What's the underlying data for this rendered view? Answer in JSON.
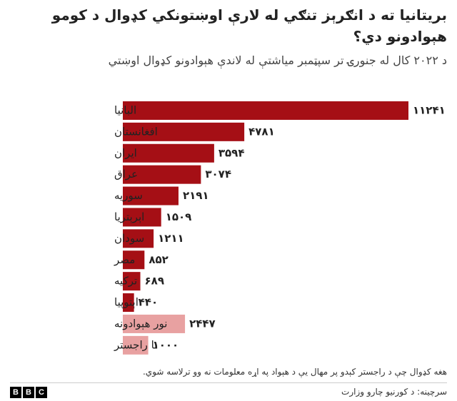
{
  "chart_data": {
    "type": "bar",
    "title": "بریتانیا ته د انګرېز تنګي له لارې اوښتونکي کډوال  د کومو هېوادونو دي؟",
    "subtitle": "د ۲۰۲۲ کال له جنورۍ تر سپټمبر میاشتې له لاندې هېوادونو کډوال اوښتي",
    "categories": [
      "البانیا",
      "افغانستان",
      "ایران",
      "عراق",
      "سوریه",
      "اېرېتریا",
      "سودان",
      "مصر",
      "ترکیه",
      "اېتوپیا",
      "نور هېوادونه",
      "نا راجستر"
    ],
    "values": [
      11241,
      4781,
      3594,
      3074,
      2191,
      1509,
      1211,
      852,
      689,
      440,
      2447,
      1000
    ],
    "value_labels": [
      "۱۱۲۴۱",
      "۴۷۸۱",
      "۳۵۹۴",
      "۳۰۷۴",
      "۲۱۹۱",
      "۱۵۰۹",
      "۱۲۱۱",
      "۸۵۲",
      "۶۸۹",
      "۴۴۰",
      "۲۴۴۷",
      "۱۰۰۰"
    ],
    "colors": [
      "#a50f15",
      "#a50f15",
      "#a50f15",
      "#a50f15",
      "#a50f15",
      "#a50f15",
      "#a50f15",
      "#a50f15",
      "#a50f15",
      "#a50f15",
      "#e8a1a1",
      "#e8a1a1"
    ],
    "note": "هغه کډوال چې د راجستر کېدو پر مهال یې د هېواد په اړه معلومات نه وو ترلاسه شوي.",
    "source": "سرچینه: د کورنیو چارو وزارت",
    "logo": [
      "B",
      "B",
      "C"
    ]
  }
}
